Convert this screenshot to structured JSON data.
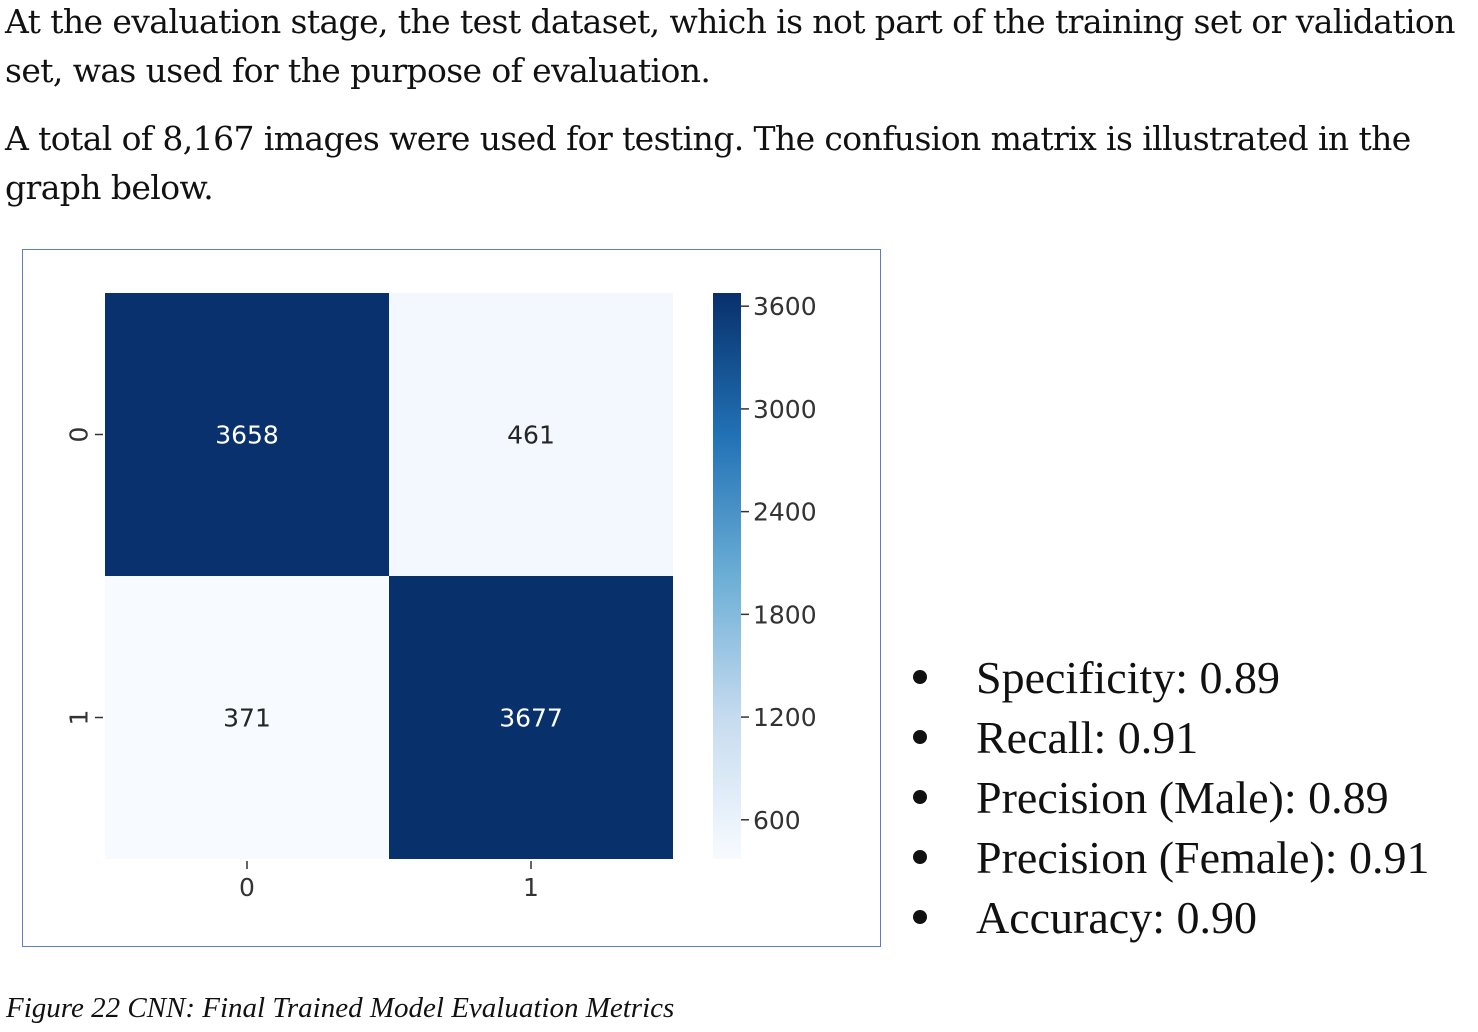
{
  "paragraphs": {
    "p1": "At the evaluation stage, the test dataset, which is not part of the training set or validation set, was used for the purpose of evaluation.",
    "p2": "A total of 8,167 images were used for testing. The confusion matrix is illustrated in the graph below."
  },
  "chart_data": {
    "type": "heatmap",
    "title": "",
    "xlabel": "",
    "ylabel": "",
    "x_tick_labels": [
      "0",
      "1"
    ],
    "y_tick_labels": [
      "0",
      "1"
    ],
    "matrix": [
      [
        3658,
        461
      ],
      [
        371,
        3677
      ]
    ],
    "colormap": "Blues",
    "color_low": "#f7fbff",
    "color_high": "#08306b",
    "colorbar": {
      "ticks": [
        600,
        1200,
        1800,
        2400,
        3000,
        3600
      ],
      "range": [
        371,
        3677
      ]
    }
  },
  "metrics": [
    "Specificity: 0.89",
    "Recall: 0.91",
    "Precision (Male): 0.89",
    "Precision (Female): 0.91",
    "Accuracy: 0.90"
  ],
  "caption": "Figure 22 CNN: Final Trained Model Evaluation Metrics"
}
